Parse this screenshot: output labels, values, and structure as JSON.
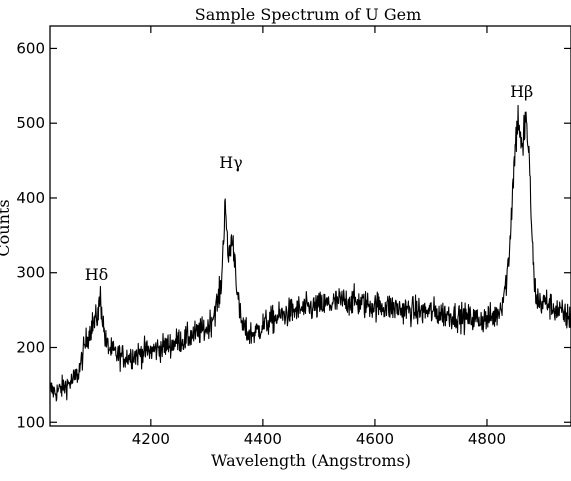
{
  "chart_data": {
    "type": "line",
    "title": "Sample Spectrum of U Gem",
    "xlabel": "Wavelength (Angstroms)",
    "ylabel": "Counts",
    "xlim": [
      4020,
      4950
    ],
    "ylim": [
      95,
      630
    ],
    "xticks": [
      4200,
      4400,
      4600,
      4800
    ],
    "yticks": [
      100,
      200,
      300,
      400,
      500,
      600
    ],
    "grid": false,
    "line_color": "#000000",
    "series": [
      {
        "x": [
          4020,
          4030,
          4040,
          4050,
          4060,
          4070,
          4075,
          4080,
          4085,
          4090,
          4095,
          4100,
          4104,
          4107,
          4110,
          4113,
          4116,
          4120,
          4125,
          4130,
          4140,
          4150,
          4160,
          4170,
          4180,
          4190,
          4200,
          4210,
          4220,
          4230,
          4240,
          4250,
          4260,
          4270,
          4280,
          4290,
          4300,
          4305,
          4310,
          4315,
          4320,
          4325,
          4328,
          4331,
          4333,
          4335,
          4338,
          4341,
          4344,
          4347,
          4350,
          4353,
          4356,
          4360,
          4365,
          4370,
          4380,
          4390,
          4400,
          4420,
          4440,
          4460,
          4480,
          4500,
          4520,
          4540,
          4560,
          4580,
          4600,
          4620,
          4640,
          4660,
          4680,
          4700,
          4720,
          4740,
          4760,
          4780,
          4800,
          4815,
          4825,
          4835,
          4840,
          4845,
          4850,
          4855,
          4858,
          4861,
          4864,
          4866,
          4869,
          4872,
          4875,
          4878,
          4881,
          4884,
          4888,
          4893,
          4898,
          4905,
          4915,
          4925,
          4935,
          4945,
          4950
        ],
        "y": [
          145,
          140,
          145,
          150,
          155,
          165,
          178,
          195,
          210,
          220,
          230,
          235,
          240,
          252,
          268,
          245,
          225,
          205,
          200,
          195,
          190,
          188,
          188,
          190,
          192,
          195,
          195,
          198,
          200,
          203,
          205,
          210,
          210,
          215,
          218,
          222,
          225,
          232,
          240,
          252,
          262,
          280,
          315,
          370,
          410,
          350,
          320,
          330,
          345,
          335,
          320,
          290,
          260,
          238,
          228,
          220,
          218,
          222,
          230,
          238,
          245,
          250,
          252,
          255,
          258,
          262,
          262,
          258,
          256,
          255,
          252,
          250,
          248,
          248,
          245,
          243,
          240,
          238,
          238,
          242,
          255,
          290,
          330,
          400,
          465,
          505,
          498,
          472,
          455,
          490,
          506,
          488,
          450,
          400,
          340,
          290,
          268,
          262,
          258,
          262,
          255,
          250,
          245,
          240,
          238
        ]
      }
    ],
    "annotations": [
      {
        "text": "Hδ",
        "x": 4103,
        "y": 290
      },
      {
        "text": "Hγ",
        "x": 4343,
        "y": 440
      },
      {
        "text": "Hβ",
        "x": 4862,
        "y": 535
      }
    ]
  }
}
